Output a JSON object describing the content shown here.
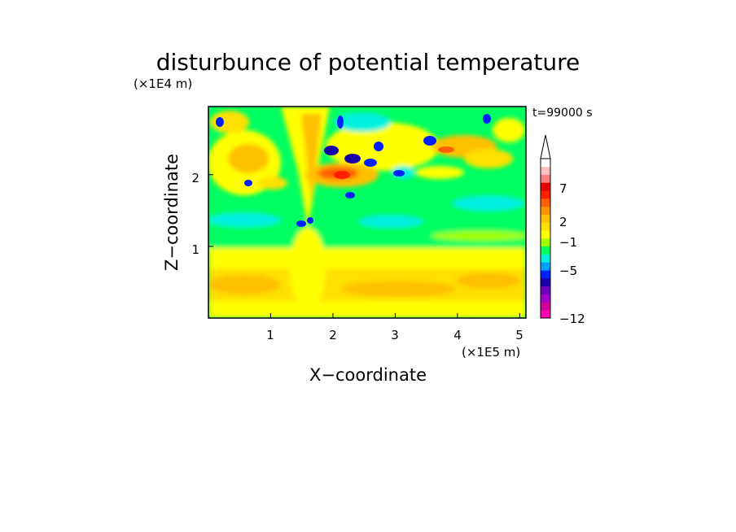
{
  "chart_data": {
    "type": "heatmap",
    "title": "disturbunce of potential temperature",
    "time_label": "t=99000 s",
    "xlabel": "X−coordinate",
    "ylabel": "Z−coordinate",
    "x_unit": "(×1E5 m)",
    "y_unit": "(×1E4 m)",
    "xlim": [
      0,
      5.1
    ],
    "ylim": [
      0,
      2.95
    ],
    "x_ticks": [
      "1",
      "2",
      "3",
      "4",
      "5"
    ],
    "y_ticks": [
      "1",
      "2"
    ],
    "colorbar": {
      "levels": [
        -12,
        -10,
        -8,
        -7,
        -6,
        -5,
        -4,
        -3,
        -2,
        -1,
        0,
        1,
        2,
        3,
        4,
        5,
        6,
        7,
        8,
        9,
        10
      ],
      "labels": [
        "−12",
        "−5",
        "−1",
        "2",
        "7"
      ],
      "colors": [
        "#ff00b0",
        "#d2009b",
        "#a000c8",
        "#7000c0",
        "#1800a8",
        "#0020ff",
        "#00a0ff",
        "#00f0e0",
        "#00ff60",
        "#a0ff00",
        "#ffff00",
        "#ffe000",
        "#ffc000",
        "#ff9000",
        "#ff6000",
        "#ff2000",
        "#e80000",
        "#ff8080",
        "#ffc0c0",
        "#ffffff"
      ],
      "extend": "max"
    },
    "field": [
      {
        "x": 0.25,
        "z": 0.2,
        "value": 1
      },
      {
        "x": 0.5,
        "z": 0.5,
        "value": 3
      },
      {
        "x": 1.5,
        "z": 0.55,
        "value": 3
      },
      {
        "x": 3.0,
        "z": 0.5,
        "value": 2
      },
      {
        "x": 4.5,
        "z": 0.45,
        "value": 3
      },
      {
        "x": 2.5,
        "z": 0.75,
        "value": 2
      },
      {
        "x": 2.5,
        "z": 1.0,
        "value": -1
      },
      {
        "x": 4.0,
        "z": 1.3,
        "value": -1
      },
      {
        "x": 0.7,
        "z": 1.35,
        "value": -2
      },
      {
        "x": 1.5,
        "z": 1.3,
        "value": -4
      },
      {
        "x": 0.9,
        "z": 2.0,
        "value": 3
      },
      {
        "x": 0.4,
        "z": 2.6,
        "value": 3
      },
      {
        "x": 2.4,
        "z": 2.3,
        "value": -6
      },
      {
        "x": 2.2,
        "z": 2.0,
        "value": 5
      },
      {
        "x": 2.4,
        "z": 1.75,
        "value": -5
      },
      {
        "x": 3.3,
        "z": 2.1,
        "value": -5
      },
      {
        "x": 4.0,
        "z": 2.0,
        "value": 4
      },
      {
        "x": 4.5,
        "z": 2.5,
        "value": 3
      },
      {
        "x": 4.45,
        "z": 2.85,
        "value": -5
      }
    ]
  }
}
